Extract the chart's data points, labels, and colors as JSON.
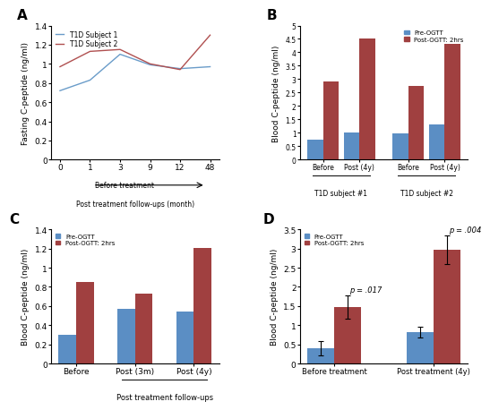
{
  "A": {
    "x": [
      0,
      1,
      3,
      9,
      12,
      48
    ],
    "subj1": [
      0.72,
      0.83,
      1.1,
      0.99,
      0.95,
      0.97
    ],
    "subj2": [
      0.97,
      1.13,
      1.15,
      1.0,
      0.94,
      1.3
    ],
    "ylabel": "Fasting C-peptide (ng/ml)",
    "ylim": [
      0,
      1.4
    ],
    "color1": "#6a9cc9",
    "color2": "#b05050",
    "label1": "T1D Subject 1",
    "label2": "T1D Subject 2"
  },
  "B": {
    "groups": [
      "Before",
      "Post (4y)",
      "Before",
      "Post (4y)"
    ],
    "subj1_pre": [
      0.73,
      1.0
    ],
    "subj1_post": [
      2.93,
      4.52
    ],
    "subj2_pre": [
      0.97,
      1.32
    ],
    "subj2_post": [
      2.75,
      4.33
    ],
    "ylabel": "Blood C-peptide (ng/ml)",
    "ylim": [
      0,
      5
    ],
    "yticks": [
      0,
      0.5,
      1.0,
      1.5,
      2.0,
      2.5,
      3.0,
      3.5,
      4.0,
      4.5,
      5.0
    ],
    "yticklabels": [
      "0",
      "0.5",
      "1",
      "1.5",
      "2",
      "2.5",
      "3",
      "3.5",
      "4",
      "4.5",
      "5"
    ],
    "color_pre": "#5b8ec4",
    "color_post": "#a04040",
    "label_pre": "Pre-OGTT",
    "label_post": "Post-OGTT: 2hrs",
    "group1_label": "T1D subject #1",
    "group2_label": "T1D subject #2"
  },
  "C": {
    "groups": [
      "Before",
      "Post (3m)",
      "Post (4y)"
    ],
    "pre": [
      0.3,
      0.57,
      0.54
    ],
    "post": [
      0.85,
      0.73,
      1.21
    ],
    "ylabel": "Blood C-peptide (ng/ml)",
    "xlabel": "Post treatment follow-ups",
    "ylim": [
      0,
      1.4
    ],
    "yticks": [
      0,
      0.2,
      0.4,
      0.6,
      0.8,
      1.0,
      1.2,
      1.4
    ],
    "yticklabels": [
      "0",
      "0.2",
      "0.4",
      "0.6",
      "0.8",
      "1",
      "1.2",
      "1.4"
    ],
    "color_pre": "#5b8ec4",
    "color_post": "#a04040",
    "label_pre": "Pre-OGTT",
    "label_post": "Post-OGTT: 2hrs"
  },
  "D": {
    "groups": [
      "Before treatment",
      "Post treatment (4y)"
    ],
    "pre_mean": [
      0.4,
      0.82
    ],
    "pre_err": [
      0.18,
      0.15
    ],
    "post_mean": [
      1.48,
      2.97
    ],
    "post_err": [
      0.3,
      0.38
    ],
    "ylabel": "Blood C-peptide (ng/ml)",
    "ylim": [
      0,
      3.5
    ],
    "yticks": [
      0,
      0.5,
      1.0,
      1.5,
      2.0,
      2.5,
      3.0,
      3.5
    ],
    "yticklabels": [
      "0",
      "0.5",
      "1",
      "1.5",
      "2",
      "2.5",
      "3",
      "3.5"
    ],
    "color_pre": "#5b8ec4",
    "color_post": "#a04040",
    "label_pre": "Pre-OGTT",
    "label_post": "Post-OGTT: 2hrs",
    "pval1": "p = .017",
    "pval2": "p = .004"
  }
}
